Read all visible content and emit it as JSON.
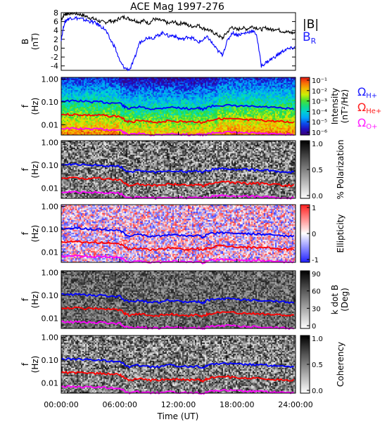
{
  "chart_data": {
    "title": "ACE Mag 1997-276",
    "xlabel": "Time (UT)",
    "x_ticks": [
      "00:00:00",
      "06:00:00",
      "12:00:00",
      "18:00:00",
      "24:00:00"
    ],
    "x_range_hours": [
      0,
      24
    ],
    "b_panel": {
      "type": "line",
      "ylabel_line1": "B",
      "ylabel_line2": "(nT)",
      "y_ticks": [
        "8",
        "6",
        "4",
        "2",
        "0",
        "-2",
        "-4"
      ],
      "ylim": [
        -5,
        8
      ],
      "series": [
        {
          "name": "|B|",
          "color": "#000000",
          "x": [
            0,
            0.3,
            0.6,
            1,
            1.5,
            2,
            2.5,
            3,
            3.5,
            4,
            4.5,
            5,
            5.5,
            6,
            6.5,
            7,
            7.5,
            8,
            8.5,
            9,
            9.5,
            10,
            10.5,
            11,
            11.5,
            12,
            12.5,
            13,
            13.5,
            14,
            14.5,
            15,
            15.5,
            16,
            16.5,
            17,
            17.5,
            18,
            18.5,
            19,
            19.5,
            20,
            20.5,
            21,
            21.5,
            22,
            22.5,
            23,
            23.5,
            24
          ],
          "y": [
            6.5,
            7.5,
            7.8,
            7.9,
            7.8,
            7.6,
            7.2,
            6.8,
            6.5,
            6.0,
            5.8,
            6.2,
            6.0,
            6.8,
            7.0,
            6.6,
            6.3,
            5.9,
            6.2,
            5.6,
            6.6,
            6.3,
            6.1,
            5.5,
            6.0,
            5.4,
            5.8,
            5.1,
            4.9,
            5.2,
            4.5,
            4.2,
            3.6,
            3.0,
            2.2,
            3.6,
            4.8,
            4.1,
            4.6,
            4.3,
            4.9,
            4.6,
            4.2,
            4.6,
            4.1,
            4.4,
            3.9,
            3.7,
            3.5,
            3.4
          ]
        },
        {
          "name": "B_R",
          "color": "#0000ff",
          "x": [
            0,
            0.3,
            0.6,
            1,
            1.5,
            2,
            2.5,
            3,
            3.5,
            4,
            4.5,
            5,
            5.5,
            6,
            6.5,
            7,
            7.5,
            8,
            8.5,
            9,
            9.5,
            10,
            10.5,
            11,
            11.5,
            12,
            12.5,
            13,
            13.5,
            14,
            14.5,
            15,
            15.5,
            16,
            16.5,
            17,
            17.5,
            18,
            18.5,
            19,
            19.5,
            20,
            20.5,
            21,
            21.5,
            22,
            22.5,
            23,
            23.5,
            24
          ],
          "y": [
            2.0,
            5.5,
            6.5,
            6.8,
            6.8,
            6.6,
            6.3,
            6.0,
            5.7,
            5.0,
            4.2,
            2.0,
            0.3,
            -3.0,
            -4.5,
            -4.9,
            -2.5,
            1.2,
            2.0,
            2.5,
            2.3,
            3.0,
            3.5,
            2.7,
            2.9,
            2.2,
            2.0,
            2.6,
            2.2,
            1.3,
            1.8,
            2.5,
            1.0,
            -0.5,
            -1.5,
            1.5,
            3.5,
            3.0,
            3.2,
            3.5,
            3.9,
            3.2,
            -4.0,
            -3.2,
            -2.5,
            -1.8,
            -1.0,
            -0.3,
            -0.1,
            0.2
          ]
        }
      ],
      "legend": [
        {
          "label": "|B|",
          "color": "#000000"
        },
        {
          "label": "B",
          "sub": "R",
          "color": "#2020ff"
        }
      ]
    },
    "freq_axis": {
      "ylabel_line1": "f",
      "ylabel_line2": "(Hz)",
      "y_ticks": [
        "1.00",
        "0.10",
        "0.01"
      ],
      "ylim_log_hz": [
        0.0035,
        1.2
      ]
    },
    "gyro_lines": {
      "x": [
        0,
        1,
        2,
        3,
        4,
        5,
        6,
        6.5,
        7,
        8,
        9,
        10,
        11,
        12,
        13,
        14,
        14.5,
        15,
        16,
        17,
        18,
        19,
        20,
        21,
        22,
        23,
        24
      ],
      "H+": [
        0.11,
        0.11,
        0.11,
        0.1,
        0.1,
        0.09,
        0.09,
        0.06,
        0.05,
        0.06,
        0.05,
        0.05,
        0.06,
        0.055,
        0.05,
        0.055,
        0.045,
        0.06,
        0.07,
        0.07,
        0.065,
        0.065,
        0.06,
        0.06,
        0.055,
        0.05,
        0.05
      ],
      "He+": [
        0.028,
        0.028,
        0.027,
        0.026,
        0.026,
        0.024,
        0.023,
        0.016,
        0.013,
        0.015,
        0.013,
        0.013,
        0.015,
        0.014,
        0.013,
        0.014,
        0.012,
        0.015,
        0.018,
        0.018,
        0.017,
        0.016,
        0.016,
        0.015,
        0.014,
        0.013,
        0.013
      ],
      "O+": [
        0.0068,
        0.0068,
        0.0066,
        0.0064,
        0.0064,
        0.006,
        0.0058,
        0.0042,
        0.0036,
        0.004,
        0.0036,
        0.0036,
        0.004,
        0.0038,
        0.0036,
        0.0038,
        0.0034,
        0.004,
        0.0046,
        0.0046,
        0.0044,
        0.0042,
        0.0042,
        0.004,
        0.0038,
        0.0036,
        0.0036
      ],
      "colors": {
        "H+": "#0000ff",
        "He+": "#ff0000",
        "O+": "#ff00ff"
      }
    },
    "spectrogram_panels": [
      {
        "id": "intensity",
        "type": "heatmap",
        "colormap": "rainbow",
        "cbar_ticks": [
          "10⁻¹",
          "10⁻²",
          "10⁻³",
          "10⁻⁴",
          "10⁻⁵",
          "10⁻⁶"
        ],
        "cbar_label_line1": "Intensity",
        "cbar_label_line2": "(nT²/Hz)"
      },
      {
        "id": "polarization",
        "type": "heatmap",
        "colormap": "gray_reverse",
        "cbar_ticks": [
          "1.0",
          "0.5",
          "0.0"
        ],
        "cbar_label_line1": "% Polarization",
        "cbar_label_line2": ""
      },
      {
        "id": "ellipticity",
        "type": "heatmap",
        "colormap": "blue_white_red",
        "cbar_ticks": [
          "1",
          "0",
          "-1"
        ],
        "cbar_label_line1": "Ellipticity",
        "cbar_label_line2": ""
      },
      {
        "id": "kdotb",
        "type": "heatmap",
        "colormap": "gray_reverse",
        "cbar_ticks": [
          "90",
          "60",
          "30",
          "0"
        ],
        "cbar_label_line1": "k dot B",
        "cbar_label_line2": "(Deg)"
      },
      {
        "id": "coherency",
        "type": "heatmap",
        "colormap": "gray_reverse",
        "cbar_ticks": [
          "1.0",
          "0.5",
          "0.0"
        ],
        "cbar_label_line1": "Coherency",
        "cbar_label_line2": ""
      }
    ],
    "gyro_legend": [
      {
        "label": "Ω",
        "sub": "H+",
        "color": "#2020ff"
      },
      {
        "label": "Ω",
        "sub": "He+",
        "color": "#ff2020"
      },
      {
        "label": "Ω",
        "sub": "O+",
        "color": "#ff20ff"
      }
    ]
  }
}
